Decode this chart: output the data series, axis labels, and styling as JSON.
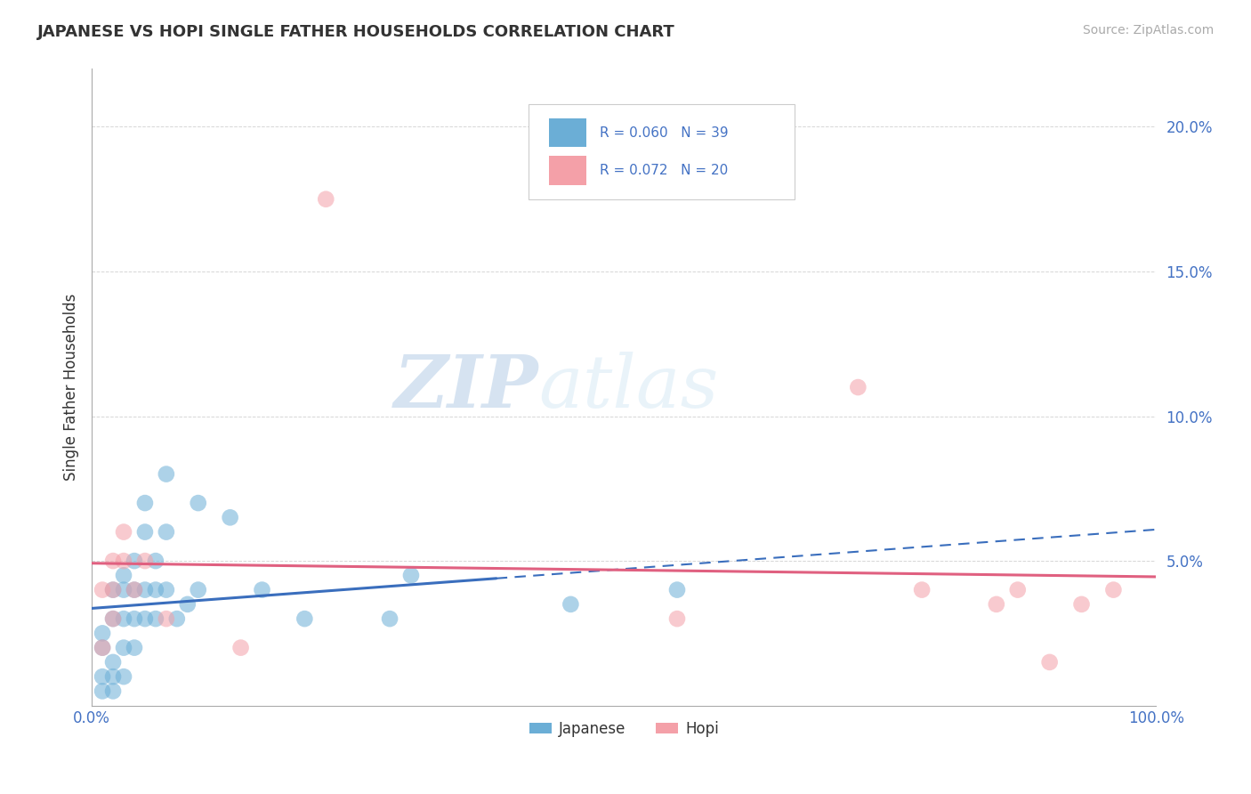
{
  "title": "JAPANESE VS HOPI SINGLE FATHER HOUSEHOLDS CORRELATION CHART",
  "source": "Source: ZipAtlas.com",
  "ylabel": "Single Father Households",
  "xlim": [
    0,
    1.0
  ],
  "ylim": [
    0,
    0.22
  ],
  "x_ticks": [
    0.0,
    0.1,
    0.2,
    0.3,
    0.4,
    0.5,
    0.6,
    0.7,
    0.8,
    0.9,
    1.0
  ],
  "x_tick_labels": [
    "0.0%",
    "",
    "",
    "",
    "",
    "",
    "",
    "",
    "",
    "",
    "100.0%"
  ],
  "y_ticks": [
    0.0,
    0.05,
    0.1,
    0.15,
    0.2
  ],
  "y_tick_labels": [
    "",
    "5.0%",
    "10.0%",
    "15.0%",
    "20.0%"
  ],
  "japanese_R": 0.06,
  "japanese_N": 39,
  "hopi_R": 0.072,
  "hopi_N": 20,
  "japanese_color": "#6baed6",
  "hopi_color": "#f4a0a8",
  "japanese_line_color": "#3a6ebd",
  "hopi_line_color": "#e06080",
  "background_color": "#ffffff",
  "grid_color": "#cccccc",
  "japanese_x": [
    0.01,
    0.01,
    0.01,
    0.01,
    0.02,
    0.02,
    0.02,
    0.02,
    0.02,
    0.03,
    0.03,
    0.03,
    0.03,
    0.03,
    0.04,
    0.04,
    0.04,
    0.04,
    0.05,
    0.05,
    0.05,
    0.05,
    0.06,
    0.06,
    0.06,
    0.07,
    0.07,
    0.07,
    0.08,
    0.09,
    0.1,
    0.1,
    0.13,
    0.16,
    0.2,
    0.28,
    0.3,
    0.45,
    0.55
  ],
  "japanese_y": [
    0.005,
    0.01,
    0.02,
    0.025,
    0.005,
    0.01,
    0.015,
    0.03,
    0.04,
    0.01,
    0.02,
    0.03,
    0.04,
    0.045,
    0.02,
    0.03,
    0.04,
    0.05,
    0.03,
    0.04,
    0.06,
    0.07,
    0.03,
    0.04,
    0.05,
    0.04,
    0.06,
    0.08,
    0.03,
    0.035,
    0.04,
    0.07,
    0.065,
    0.04,
    0.03,
    0.03,
    0.045,
    0.035,
    0.04
  ],
  "hopi_x": [
    0.01,
    0.01,
    0.02,
    0.02,
    0.02,
    0.03,
    0.03,
    0.04,
    0.05,
    0.07,
    0.14,
    0.22,
    0.55,
    0.72,
    0.78,
    0.85,
    0.87,
    0.9,
    0.93,
    0.96
  ],
  "hopi_y": [
    0.02,
    0.04,
    0.03,
    0.04,
    0.05,
    0.05,
    0.06,
    0.04,
    0.05,
    0.03,
    0.02,
    0.175,
    0.03,
    0.11,
    0.04,
    0.035,
    0.04,
    0.015,
    0.035,
    0.04
  ]
}
